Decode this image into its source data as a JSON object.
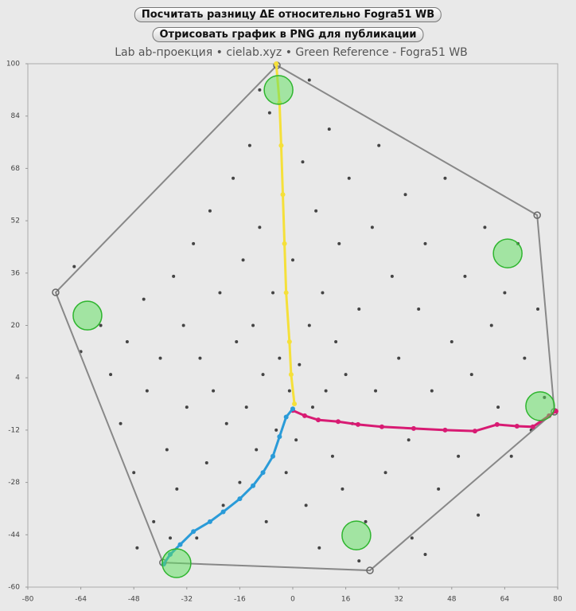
{
  "buttons": [
    "Посчитать разницу ΔE относительно Fogra51 WB",
    "Отрисовать график в PNG для публикации"
  ],
  "chart_data": {
    "type": "scatter",
    "title": "Lab ab-проекция • cielab.xyz • Green Reference - Fogra51 WB",
    "xlim": [
      -80,
      80
    ],
    "ylim": [
      -60,
      100
    ],
    "xticks": [
      -80,
      -64,
      -48,
      -32,
      -16,
      0,
      16,
      32,
      48,
      64,
      80
    ],
    "yticks": [
      -60,
      -44,
      -28,
      -12,
      4,
      20,
      36,
      52,
      68,
      84,
      100
    ],
    "series": [
      {
        "style": "points",
        "color": "#444444",
        "x": [
          -58,
          -55,
          -52,
          -50,
          -48,
          -45,
          -44,
          -42,
          -40,
          -38,
          -36,
          -35,
          -33,
          -32,
          -30,
          -29,
          -28,
          -26,
          -25,
          -24,
          -22,
          -21,
          -20,
          -18,
          -17,
          -16,
          -15,
          -14,
          -13,
          -12,
          -11,
          -10,
          -9,
          -8,
          -7,
          -6,
          -5,
          -4,
          -3,
          -2,
          -1,
          0,
          1,
          2,
          3,
          4,
          5,
          6,
          7,
          8,
          9,
          10,
          11,
          12,
          13,
          14,
          15,
          16,
          17,
          18,
          20,
          22,
          24,
          25,
          26,
          28,
          30,
          32,
          34,
          35,
          36,
          38,
          40,
          42,
          44,
          46,
          48,
          50,
          52,
          54,
          56,
          58,
          60,
          62,
          64,
          66,
          68,
          70,
          72,
          74,
          -66,
          -64,
          -47,
          -37,
          -10,
          5,
          20,
          40,
          76
        ],
        "y": [
          20,
          5,
          -10,
          15,
          -25,
          28,
          0,
          -40,
          10,
          -18,
          35,
          -30,
          20,
          -5,
          45,
          -45,
          10,
          -22,
          55,
          0,
          30,
          -35,
          -10,
          65,
          15,
          -28,
          40,
          -5,
          75,
          20,
          -18,
          50,
          5,
          -40,
          85,
          30,
          -12,
          10,
          60,
          -25,
          0,
          40,
          -15,
          8,
          70,
          -35,
          20,
          -5,
          55,
          -48,
          30,
          0,
          80,
          -20,
          15,
          45,
          -30,
          5,
          65,
          -10,
          25,
          -40,
          50,
          0,
          75,
          -25,
          35,
          10,
          60,
          -15,
          -45,
          25,
          45,
          0,
          -30,
          65,
          15,
          -20,
          35,
          5,
          -38,
          50,
          20,
          -5,
          30,
          -20,
          45,
          10,
          -12,
          25,
          38,
          12,
          -48,
          -45,
          92,
          95,
          -52,
          -50,
          -2
        ]
      },
      {
        "style": "polygon",
        "color": "#888888",
        "x": [
          -71.6,
          -4.8,
          73.8,
          79,
          23.3,
          -39.2
        ],
        "y": [
          30.1,
          99.5,
          53.7,
          -6.4,
          -54.9,
          -52.5
        ]
      },
      {
        "style": "line",
        "color": "#f5e03a",
        "x": [
          0.5,
          -0.5,
          -1,
          -2,
          -2.5,
          -3,
          -3.5,
          -4,
          -5
        ],
        "y": [
          -4,
          5,
          15,
          30,
          45,
          60,
          75,
          88,
          100
        ]
      },
      {
        "style": "line",
        "color": "#d81b73",
        "x": [
          0,
          3.6,
          7.7,
          13.7,
          19.7,
          26.9,
          36.5,
          46,
          55,
          61.7,
          67.7,
          72.5,
          77.4,
          79.5
        ],
        "y": [
          -6,
          -7.6,
          -8.9,
          -9.4,
          -10.3,
          -11,
          -11.5,
          -12,
          -12.3,
          -10.3,
          -10.8,
          -11,
          -7.6,
          -6.2
        ]
      },
      {
        "style": "line",
        "color": "#2a9bd8",
        "x": [
          0,
          -2,
          -4,
          -6,
          -9,
          -12,
          -16,
          -21,
          -25,
          -30,
          -34,
          -37,
          -39
        ],
        "y": [
          -5.5,
          -8,
          -14,
          -20,
          -25,
          -29,
          -33,
          -37,
          -40,
          -43,
          -47,
          -50,
          -53
        ]
      },
      {
        "style": "circles",
        "color": "#5ce05c",
        "x": [
          -62,
          -4.3,
          64.9,
          74.7,
          19.2,
          -35.1
        ],
        "y": [
          23,
          92,
          42,
          -4.7,
          -44.2,
          -52.7
        ]
      }
    ]
  }
}
